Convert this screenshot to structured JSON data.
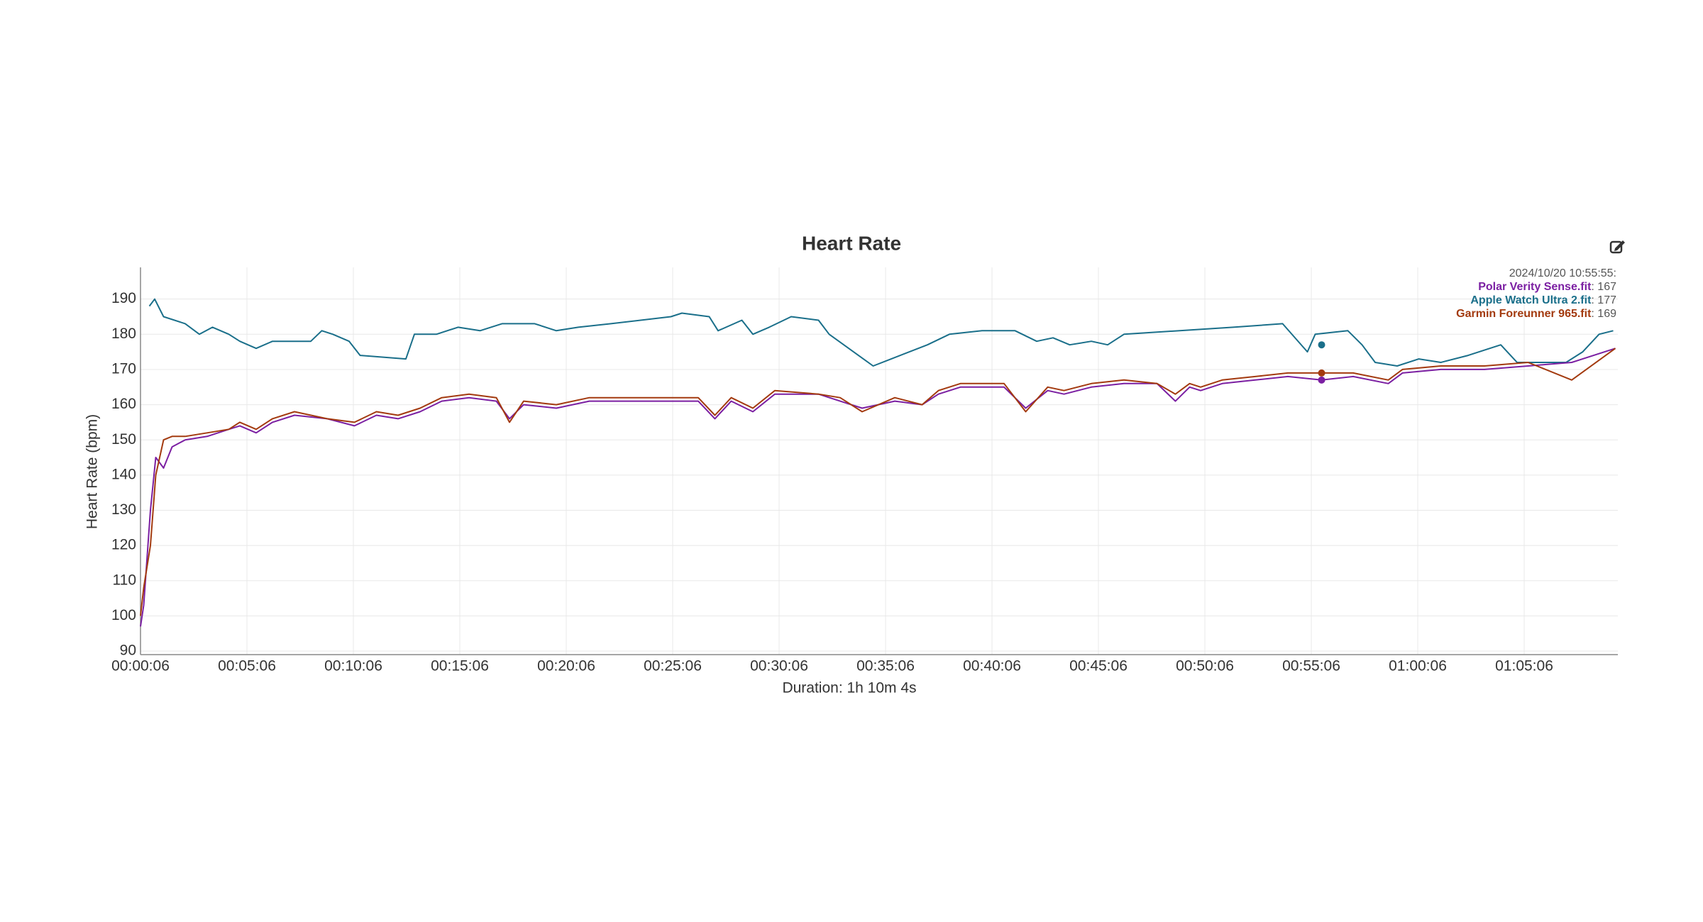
{
  "chart_data": {
    "type": "line",
    "title": "Heart Rate",
    "xlabel": "Duration: 1h 10m 4s",
    "ylabel": "Heart Rate (bpm)",
    "xlim": [
      6,
      4170
    ],
    "ylim": [
      89,
      199
    ],
    "grid": true,
    "xticks": [
      {
        "value": 6,
        "label": "00:00:06"
      },
      {
        "value": 306,
        "label": "00:05:06"
      },
      {
        "value": 606,
        "label": "00:10:06"
      },
      {
        "value": 906,
        "label": "00:15:06"
      },
      {
        "value": 1206,
        "label": "00:20:06"
      },
      {
        "value": 1506,
        "label": "00:25:06"
      },
      {
        "value": 1806,
        "label": "00:30:06"
      },
      {
        "value": 2106,
        "label": "00:35:06"
      },
      {
        "value": 2406,
        "label": "00:40:06"
      },
      {
        "value": 2706,
        "label": "00:45:06"
      },
      {
        "value": 3006,
        "label": "00:50:06"
      },
      {
        "value": 3306,
        "label": "00:55:06"
      },
      {
        "value": 3606,
        "label": "01:00:06"
      },
      {
        "value": 3906,
        "label": "01:05:06"
      }
    ],
    "yticks": [
      90,
      100,
      110,
      120,
      130,
      140,
      150,
      160,
      170,
      180,
      190
    ],
    "series": [
      {
        "name": "Polar Verity Sense.fit",
        "color": "#7b1fa2",
        "x": [
          6,
          15,
          34,
          49,
          71,
          95,
          132,
          194,
          255,
          286,
          332,
          378,
          440,
          532,
          609,
          671,
          732,
          794,
          855,
          932,
          1009,
          1046,
          1086,
          1178,
          1271,
          1394,
          1578,
          1625,
          1671,
          1732,
          1794,
          1917,
          1978,
          2040,
          2132,
          2209,
          2255,
          2317,
          2440,
          2501,
          2563,
          2609,
          2686,
          2778,
          2871,
          2923,
          2963,
          2994,
          3055,
          3148,
          3240,
          3335,
          3424,
          3523,
          3563,
          3671,
          3794,
          3917,
          4040,
          4163
        ],
        "values": [
          97,
          103,
          130,
          145,
          142,
          148,
          150,
          151,
          153,
          154,
          152,
          155,
          157,
          156,
          154,
          157,
          156,
          158,
          161,
          162,
          161,
          156,
          160,
          159,
          161,
          161,
          161,
          156,
          161,
          158,
          163,
          163,
          161,
          159,
          161,
          160,
          163,
          165,
          165,
          159,
          164,
          163,
          165,
          166,
          166,
          161,
          165,
          164,
          166,
          167,
          168,
          167,
          168,
          166,
          169,
          170,
          170,
          171,
          172,
          176
        ]
      },
      {
        "name": "Apple Watch Ultra 2.fit",
        "color": "#1a6f8a",
        "x": [
          31,
          46,
          71,
          132,
          172,
          209,
          255,
          286,
          332,
          378,
          440,
          486,
          517,
          548,
          594,
          625,
          754,
          778,
          840,
          901,
          963,
          1025,
          1117,
          1178,
          1240,
          1332,
          1501,
          1532,
          1609,
          1634,
          1701,
          1732,
          1778,
          1840,
          1917,
          1947,
          2071,
          2224,
          2286,
          2378,
          2471,
          2532,
          2578,
          2625,
          2686,
          2732,
          2778,
          3086,
          3225,
          3295,
          3317,
          3409,
          3449,
          3486,
          3548,
          3609,
          3671,
          3748,
          3840,
          3886,
          3978,
          4024,
          4071,
          4117,
          4157
        ],
        "values": [
          188,
          190,
          185,
          183,
          180,
          182,
          180,
          178,
          176,
          178,
          178,
          178,
          181,
          180,
          178,
          174,
          173,
          180,
          180,
          182,
          181,
          183,
          183,
          181,
          182,
          183,
          185,
          186,
          185,
          181,
          184,
          180,
          182,
          185,
          184,
          180,
          171,
          177,
          180,
          181,
          181,
          178,
          179,
          177,
          178,
          177,
          180,
          182,
          183,
          175,
          180,
          181,
          177,
          172,
          171,
          173,
          172,
          174,
          177,
          172,
          172,
          172,
          175,
          180,
          181
        ]
      },
      {
        "name": "Garmin Foreunner 965.fit",
        "color": "#a33a0f",
        "x": [
          6,
          15,
          34,
          49,
          71,
          95,
          132,
          194,
          255,
          286,
          332,
          378,
          440,
          532,
          609,
          671,
          732,
          794,
          855,
          932,
          1009,
          1046,
          1086,
          1178,
          1271,
          1394,
          1578,
          1625,
          1671,
          1732,
          1794,
          1917,
          1978,
          2040,
          2132,
          2209,
          2255,
          2317,
          2440,
          2501,
          2563,
          2609,
          2686,
          2778,
          2871,
          2923,
          2963,
          2994,
          3055,
          3148,
          3240,
          3335,
          3424,
          3523,
          3563,
          3671,
          3794,
          3917,
          4040,
          4163
        ],
        "values": [
          100,
          108,
          120,
          140,
          150,
          151,
          151,
          152,
          153,
          155,
          153,
          156,
          158,
          156,
          155,
          158,
          157,
          159,
          162,
          163,
          162,
          155,
          161,
          160,
          162,
          162,
          162,
          157,
          162,
          159,
          164,
          163,
          162,
          158,
          162,
          160,
          164,
          166,
          166,
          158,
          165,
          164,
          166,
          167,
          166,
          163,
          166,
          165,
          167,
          168,
          169,
          169,
          169,
          167,
          170,
          171,
          171,
          172,
          167,
          176
        ]
      }
    ],
    "tooltip": {
      "label": "2024/10/20 10:55:55:",
      "x": 3335,
      "values": [
        167,
        177,
        169
      ]
    }
  }
}
